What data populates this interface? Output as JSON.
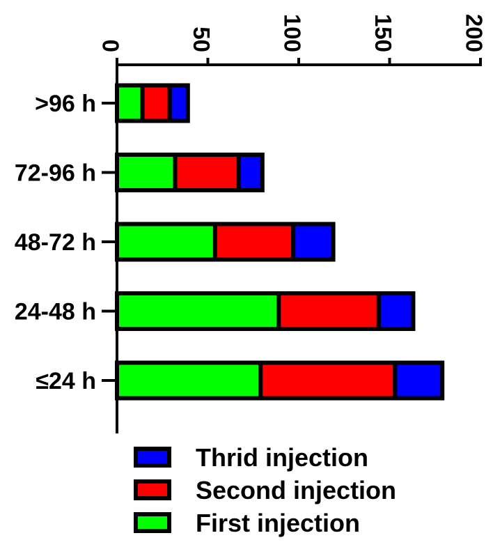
{
  "chart_data": {
    "type": "bar",
    "orientation": "horizontal",
    "stacked": true,
    "categories": [
      ">96 h",
      "72-96 h",
      "48-72 h",
      "24-48 h",
      "≤24  h"
    ],
    "series": [
      {
        "name": "First injection",
        "color": "#00ff00",
        "values": [
          14,
          32,
          54,
          89,
          79
        ]
      },
      {
        "name": "Second injection",
        "color": "#ff0000",
        "values": [
          15,
          35,
          43,
          55,
          74
        ]
      },
      {
        "name": "Thrid injection",
        "color": "#0000ff",
        "values": [
          10,
          13,
          22,
          19,
          26
        ]
      }
    ],
    "x_ticks": [
      "0",
      "50",
      "100",
      "150",
      "200"
    ],
    "xlim": [
      0,
      200
    ],
    "x_axis_position": "top",
    "tick_label_rotation": 90,
    "legend_position": "bottom",
    "legend_order": [
      "Thrid injection",
      "Second injection",
      "First injection"
    ],
    "grid": false,
    "bar_outline_color": "#000000"
  }
}
